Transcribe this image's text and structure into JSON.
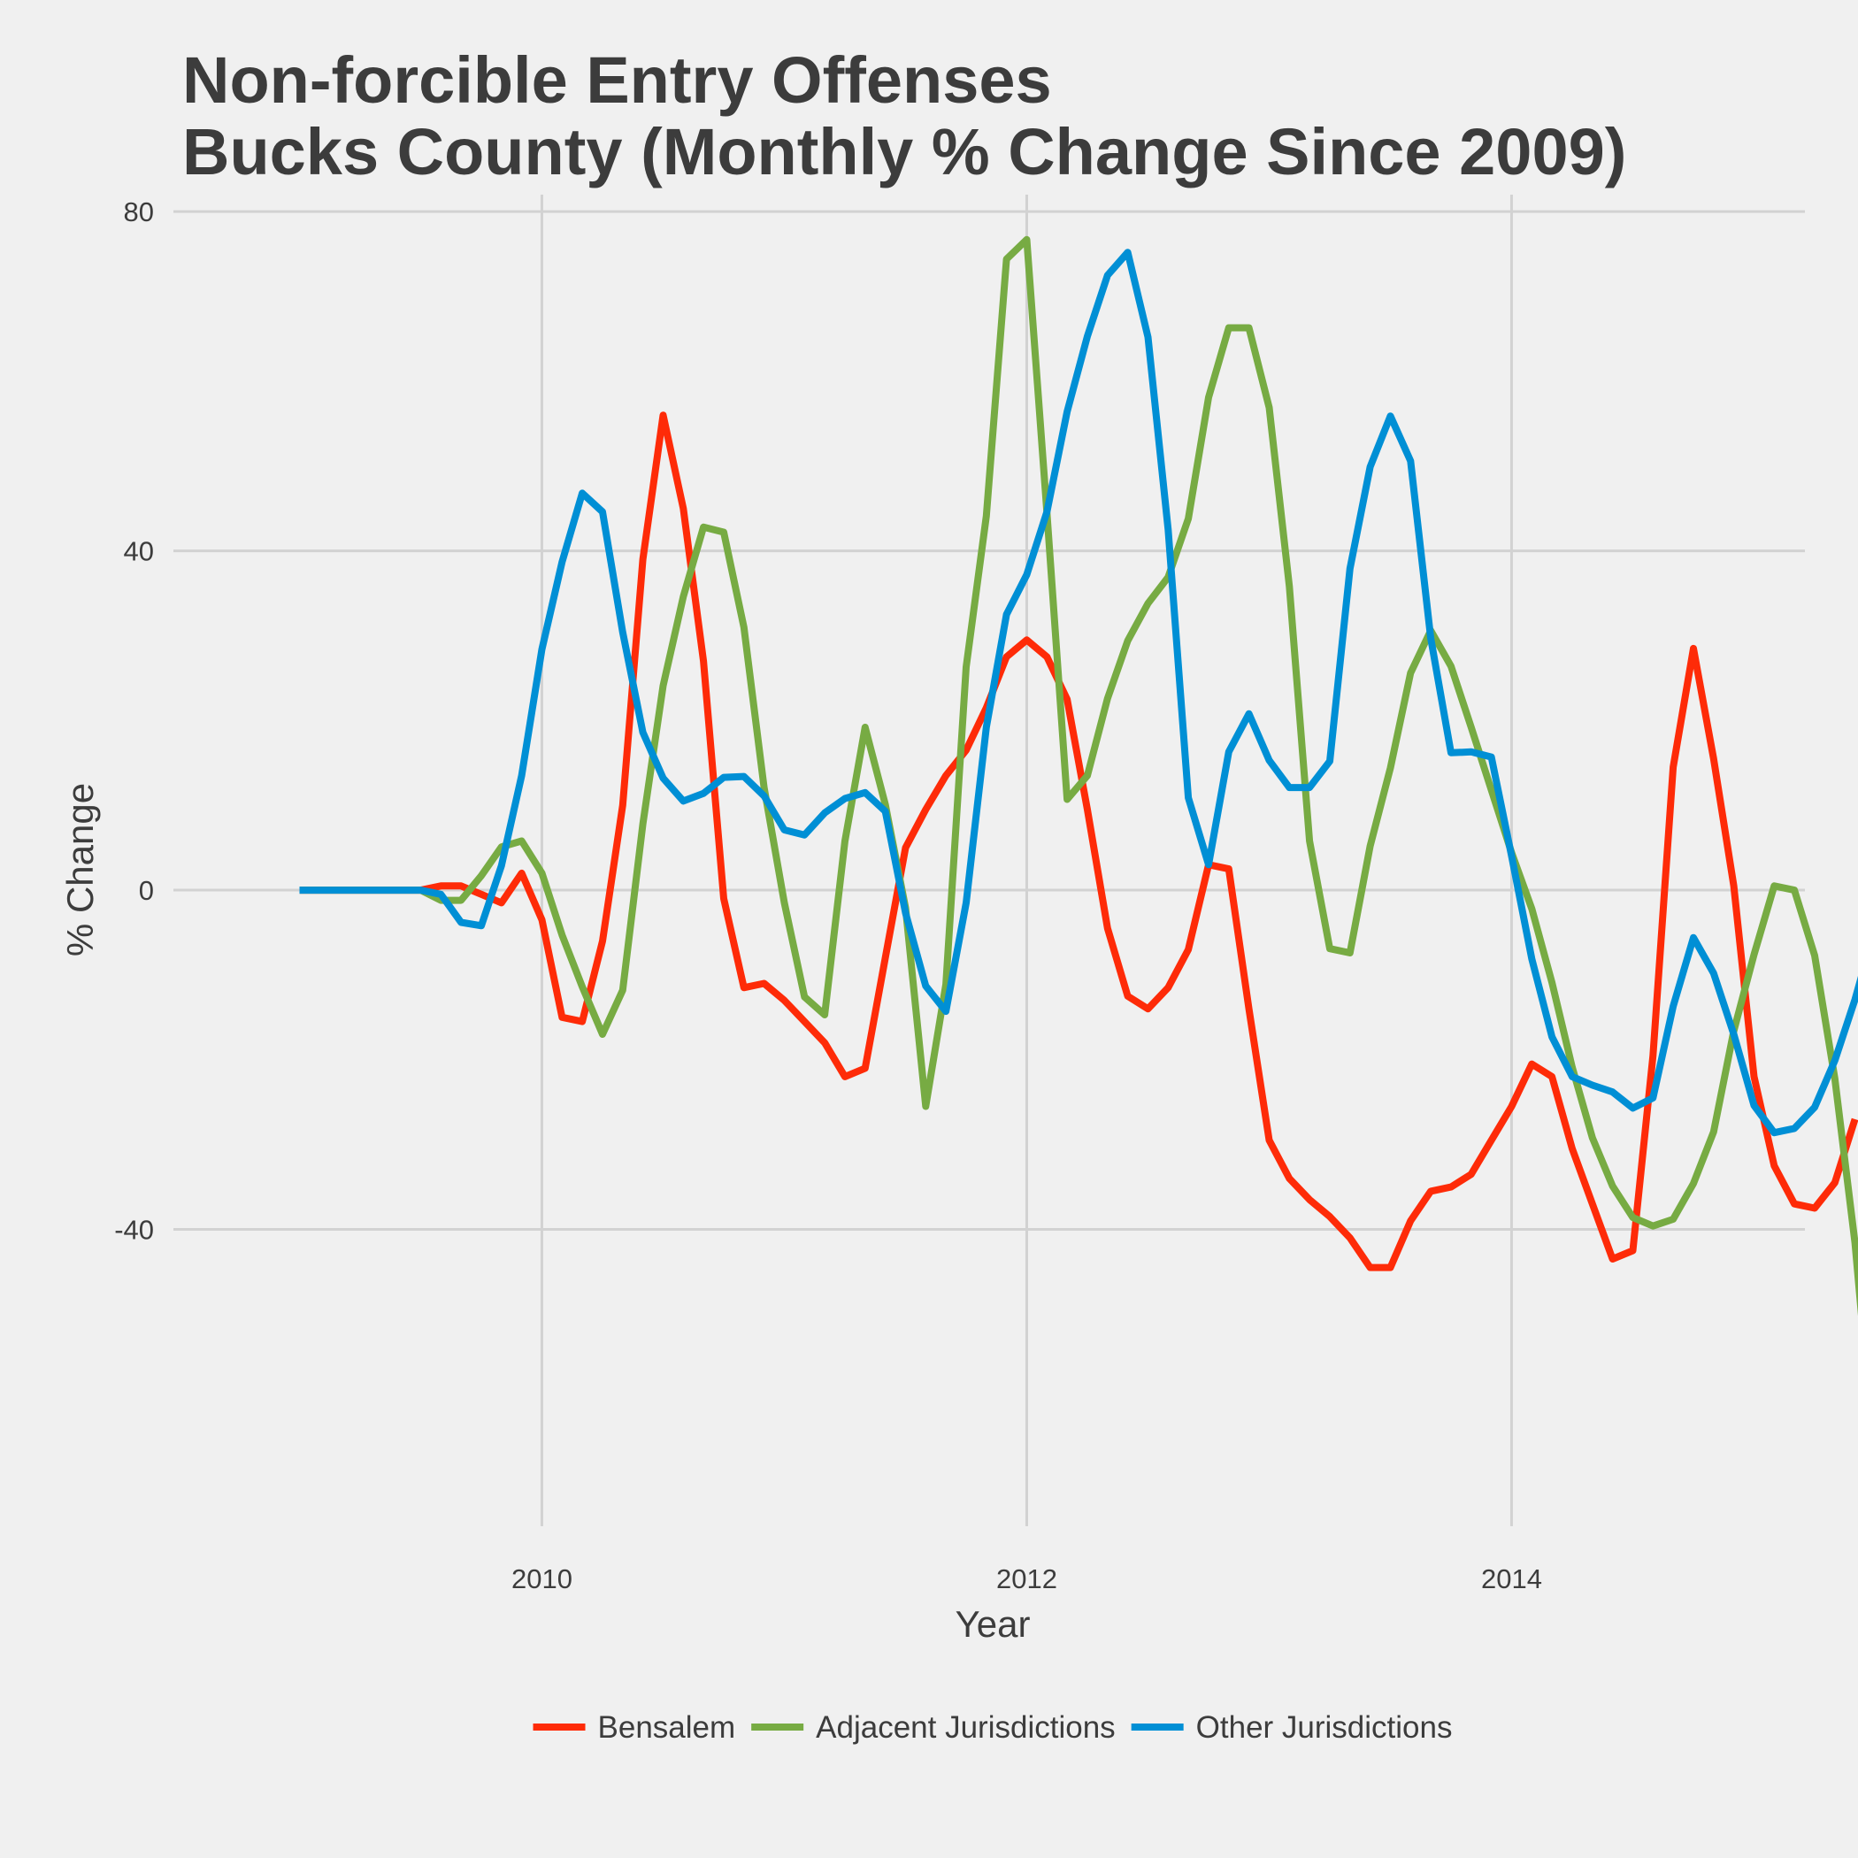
{
  "chart_data": {
    "type": "line",
    "title_lines": [
      "Non-forcible Entry Offenses",
      "Bucks County (Monthly % Change Since 2009)"
    ],
    "xlabel": "Year",
    "ylabel": "% Change",
    "xlim": [
      2008.48,
      2015.21
    ],
    "ylim": [
      -75,
      82
    ],
    "x_ticks": [
      2010,
      2012,
      2014
    ],
    "x_tick_labels": [
      "2010",
      "2012",
      "2014"
    ],
    "y_ticks": [
      80,
      40,
      0,
      -40
    ],
    "y_tick_labels": [
      "80",
      "40",
      "0",
      "-40"
    ],
    "grid": true,
    "legend_position": "bottom",
    "x_start": 2009.0,
    "x_step": 0.0833333,
    "series": [
      {
        "name": "Bensalem",
        "color": "#fe2b08",
        "values": [
          0,
          0,
          0,
          0,
          0,
          0,
          0,
          0.5,
          0.5,
          -0.5,
          -1.5,
          2,
          -3.5,
          -15,
          -15.5,
          -6,
          10,
          39,
          56,
          45,
          27,
          -1,
          -11.5,
          -11,
          -13,
          -15.5,
          -18,
          -22,
          -21,
          -8,
          5,
          9.5,
          13.5,
          16.5,
          21.5,
          27.5,
          29.5,
          27.5,
          22.5,
          9.5,
          -4.5,
          -12.5,
          -14,
          -11.5,
          -7,
          3,
          2.5,
          -14,
          -29.5,
          -34,
          -36.5,
          -38.5,
          -41,
          -44.5,
          -44.5,
          -39,
          -35.5,
          -35,
          -33.5,
          -29.5,
          -25.5,
          -20.5,
          -22,
          -30.5,
          -37,
          -43.5,
          -42.5,
          -19.5,
          14.5,
          28.5,
          15.5,
          0.5,
          -22,
          -32.5,
          -37,
          -37.5,
          -34.5,
          -27
        ]
      },
      {
        "name": "Adjacent Jurisdictions",
        "color": "#77ab43",
        "values": [
          0,
          0,
          0,
          0,
          0,
          0,
          0,
          -1.2,
          -1.2,
          1.7,
          5.1,
          5.8,
          2,
          -5.3,
          -11.4,
          -17,
          -11.8,
          7.8,
          24.1,
          34.6,
          42.8,
          42.2,
          31,
          12.1,
          -1.5,
          -12.6,
          -14.7,
          5.8,
          19.2,
          10.1,
          -2.1,
          -25.5,
          -11.1,
          26.3,
          44.1,
          74.4,
          76.7,
          44.5,
          10.7,
          13.5,
          22.6,
          29.4,
          33.8,
          36.9,
          43.8,
          58.1,
          66.3,
          66.3,
          56.9,
          35.8,
          5.8,
          -6.9,
          -7.4,
          5.2,
          14.4,
          25.6,
          30.6,
          26.4,
          19.2,
          11.8,
          4.4,
          -2.2,
          -10.9,
          -20.9,
          -29.2,
          -34.9,
          -38.6,
          -39.6,
          -38.8,
          -34.6,
          -28.5,
          -16.6,
          -7.6,
          0.5,
          0,
          -7.7,
          -22.2,
          -41.6,
          -68.2
        ]
      },
      {
        "name": "Other Jurisdictions",
        "color": "#008fd5",
        "values": [
          0,
          0,
          0,
          0,
          0,
          0,
          0,
          -0.5,
          -3.8,
          -4.2,
          2.9,
          13.5,
          28.4,
          38.7,
          46.8,
          44.6,
          30.4,
          18.6,
          13.2,
          10.5,
          11.4,
          13.3,
          13.4,
          11.1,
          7.1,
          6.5,
          9.1,
          10.8,
          11.5,
          9.3,
          -2.7,
          -11.3,
          -14.3,
          -1.5,
          19.2,
          32.5,
          37.2,
          44.6,
          56.4,
          65.3,
          72.5,
          75.2,
          65.2,
          42.5,
          10.9,
          3,
          16.3,
          20.8,
          15.3,
          12.1,
          12.1,
          15.2,
          37.9,
          49.9,
          55.9,
          50.6,
          29.7,
          16.2,
          16.3,
          15.7,
          4,
          -8.1,
          -17.3,
          -22,
          -23,
          -23.8,
          -25.7,
          -24.5,
          -13.7,
          -5.6,
          -9.8,
          -17,
          -25.4,
          -28.6,
          -28.1,
          -25.6,
          -20.1,
          -12.9,
          -4.4,
          3.9
        ]
      }
    ]
  }
}
